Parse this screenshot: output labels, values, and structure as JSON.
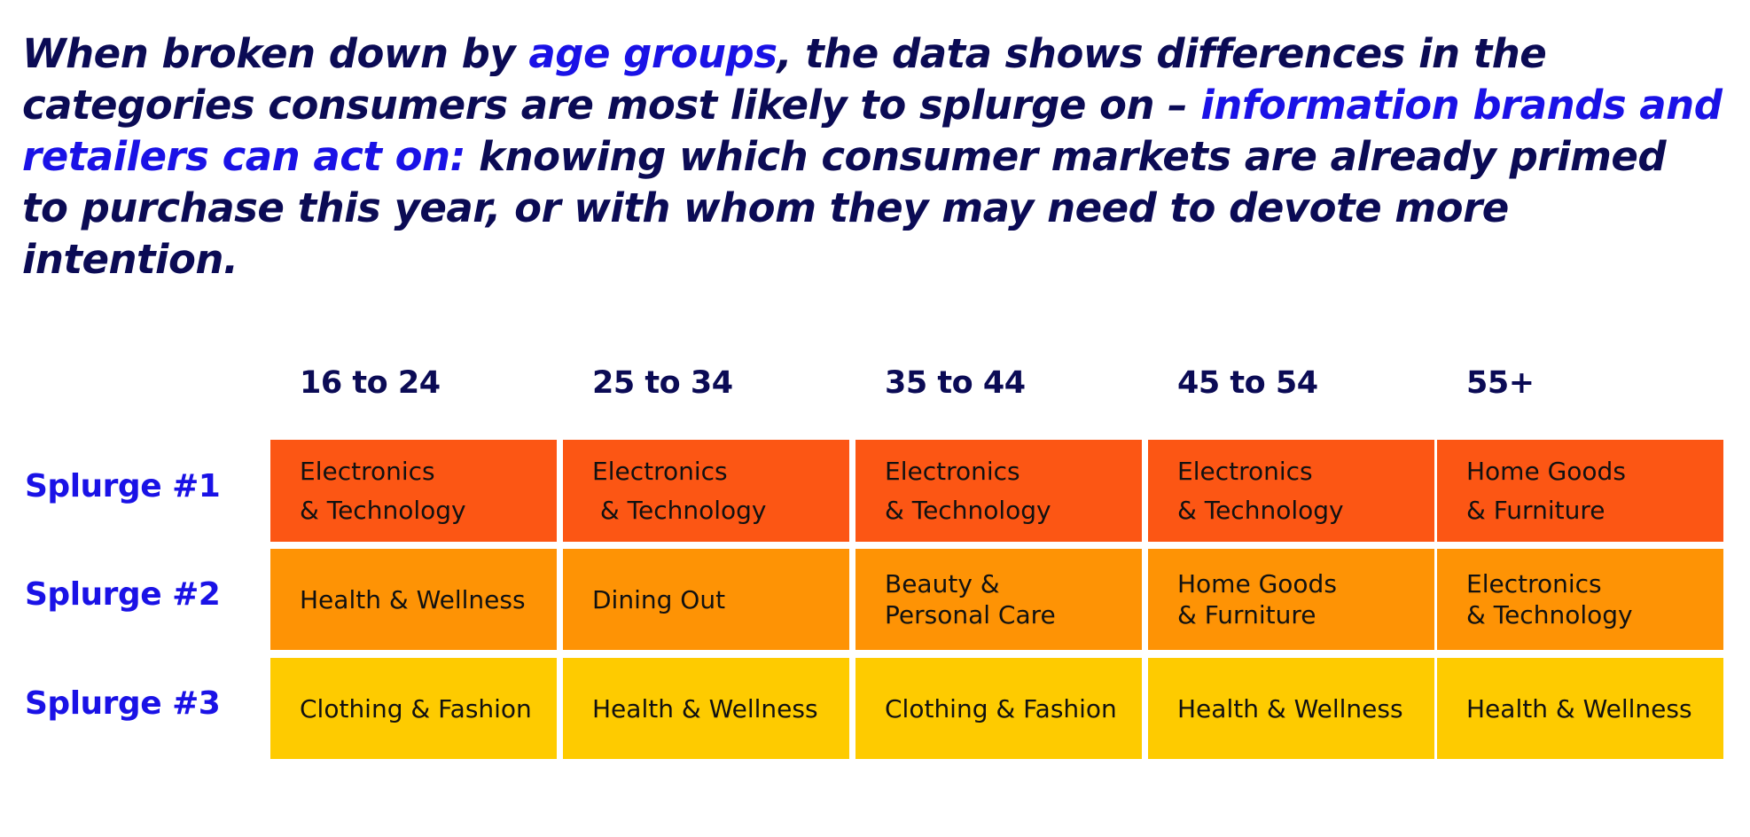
{
  "headline": {
    "part1": "When broken down by ",
    "highlight1": "age groups",
    "part2": ", the data shows differences in the categories consumers are most likely to splurge on – ",
    "highlight2": "information brands and retailers can act on:",
    "part3": " knowing which consumer markets are already primed to purchase this year, or with whom they may need to devote more intention."
  },
  "columns": [
    "16 to 24",
    "25 to 34",
    "35 to 44",
    "45 to 54",
    "55+"
  ],
  "rows": [
    {
      "label": "Splurge #1",
      "cells": [
        [
          "Electronics",
          "& Technology"
        ],
        [
          "Electronics",
          " & Technology"
        ],
        [
          "Electronics",
          "& Technology"
        ],
        [
          "Electronics",
          "& Technology"
        ],
        [
          "Home Goods",
          "& Furniture"
        ]
      ]
    },
    {
      "label": "Splurge #2",
      "cells": [
        [
          "Health & Wellness"
        ],
        [
          "Dining Out"
        ],
        [
          "Beauty &",
          "Personal Care"
        ],
        [
          "Home Goods",
          "& Furniture"
        ],
        [
          "Electronics",
          "& Technology"
        ]
      ]
    },
    {
      "label": "Splurge #3",
      "cells": [
        [
          "Clothing & Fashion"
        ],
        [
          "Health & Wellness"
        ],
        [
          "Clothing & Fashion"
        ],
        [
          "Health & Wellness"
        ],
        [
          "Health & Wellness"
        ]
      ]
    }
  ],
  "colors": {
    "headline_text": "#0b0b55",
    "highlight_text": "#1a12e6",
    "row_labels": "#1a12e6",
    "splurge1_fill": "#fc5614",
    "splurge2_fill": "#fe9305",
    "splurge3_fill": "#fecb00"
  }
}
